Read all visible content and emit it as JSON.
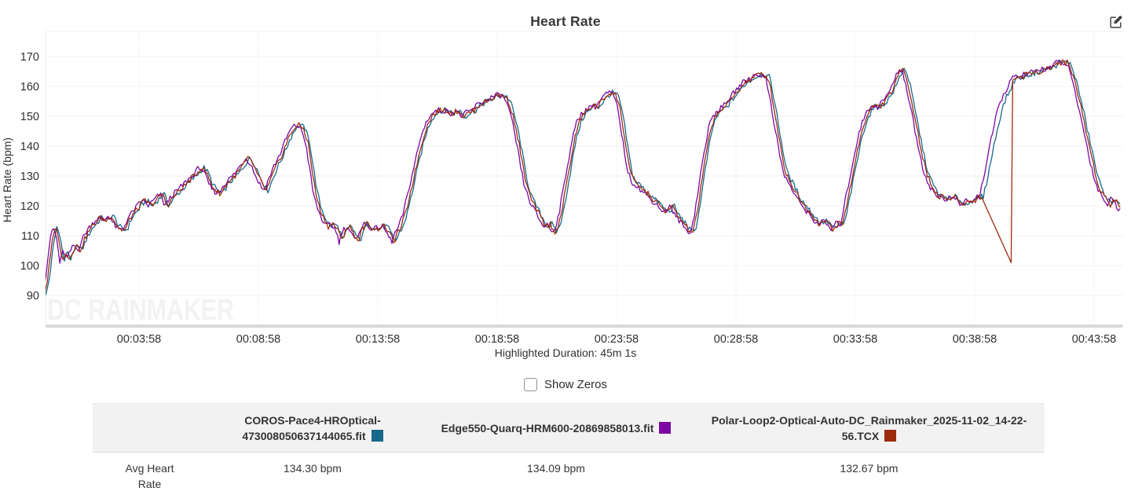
{
  "page": {
    "title": "Heart Rate"
  },
  "icons": {
    "edit": "pencil-square"
  },
  "controls": {
    "show_zeros_label": "Show Zeros",
    "show_zeros_checked": false
  },
  "x_axis": {
    "highlighted_duration": "Highlighted Duration: 45m 1s"
  },
  "watermark": "DC RAINMAKER",
  "table": {
    "row_label": "Avg Heart Rate"
  },
  "chart_data": {
    "type": "line",
    "title": "Heart Rate",
    "ylabel": "Heart Rate (bpm)",
    "y_ticks": [
      90,
      100,
      110,
      120,
      130,
      140,
      150,
      160,
      170
    ],
    "ylim": [
      79,
      178
    ],
    "x_ticks": [
      {
        "label": "00:03:58",
        "min": 3.9667
      },
      {
        "label": "00:08:58",
        "min": 8.9667
      },
      {
        "label": "00:13:58",
        "min": 13.9667
      },
      {
        "label": "00:18:58",
        "min": 18.9667
      },
      {
        "label": "00:23:58",
        "min": 23.9667
      },
      {
        "label": "00:28:58",
        "min": 28.9667
      },
      {
        "label": "00:33:58",
        "min": 33.9667
      },
      {
        "label": "00:38:58",
        "min": 38.9667
      },
      {
        "label": "00:43:58",
        "min": 43.9667
      }
    ],
    "x_range_minutes": [
      0,
      45.1
    ],
    "grid": true,
    "legend_position": "bottom-table",
    "base_curve_t_bpm": [
      [
        0,
        90
      ],
      [
        0.15,
        96
      ],
      [
        0.3,
        106
      ],
      [
        0.45,
        113
      ],
      [
        0.6,
        110
      ],
      [
        0.75,
        101
      ],
      [
        0.9,
        105
      ],
      [
        1.05,
        102
      ],
      [
        1.2,
        105
      ],
      [
        1.35,
        107
      ],
      [
        1.5,
        105
      ],
      [
        1.7,
        109
      ],
      [
        1.9,
        112
      ],
      [
        2.1,
        114
      ],
      [
        2.35,
        116
      ],
      [
        2.6,
        115
      ],
      [
        2.8,
        117
      ],
      [
        3.0,
        114
      ],
      [
        3.2,
        112
      ],
      [
        3.4,
        112
      ],
      [
        3.6,
        116
      ],
      [
        3.8,
        118
      ],
      [
        4.0,
        120
      ],
      [
        4.2,
        122
      ],
      [
        4.45,
        120
      ],
      [
        4.7,
        122
      ],
      [
        4.95,
        124
      ],
      [
        5.15,
        120
      ],
      [
        5.4,
        123
      ],
      [
        5.65,
        125
      ],
      [
        5.9,
        127
      ],
      [
        6.15,
        129
      ],
      [
        6.4,
        131
      ],
      [
        6.6,
        133
      ],
      [
        6.8,
        131
      ],
      [
        7.0,
        127
      ],
      [
        7.2,
        125
      ],
      [
        7.4,
        124
      ],
      [
        7.6,
        127
      ],
      [
        7.85,
        129
      ],
      [
        8.1,
        131
      ],
      [
        8.35,
        134
      ],
      [
        8.55,
        136
      ],
      [
        8.75,
        134
      ],
      [
        8.95,
        130
      ],
      [
        9.15,
        127
      ],
      [
        9.3,
        125
      ],
      [
        9.5,
        129
      ],
      [
        9.7,
        133
      ],
      [
        9.95,
        137
      ],
      [
        10.2,
        142
      ],
      [
        10.45,
        146
      ],
      [
        10.65,
        147
      ],
      [
        10.85,
        146
      ],
      [
        11.05,
        141
      ],
      [
        11.2,
        133
      ],
      [
        11.35,
        125
      ],
      [
        11.5,
        120
      ],
      [
        11.7,
        116
      ],
      [
        11.9,
        113
      ],
      [
        12.1,
        114
      ],
      [
        12.3,
        112
      ],
      [
        12.45,
        108
      ],
      [
        12.6,
        112
      ],
      [
        12.8,
        113
      ],
      [
        13.0,
        110
      ],
      [
        13.15,
        108
      ],
      [
        13.3,
        112
      ],
      [
        13.5,
        114
      ],
      [
        13.7,
        113
      ],
      [
        13.9,
        112
      ],
      [
        14.1,
        113
      ],
      [
        14.3,
        113
      ],
      [
        14.5,
        110
      ],
      [
        14.65,
        108
      ],
      [
        14.8,
        111
      ],
      [
        14.95,
        113
      ],
      [
        15.15,
        118
      ],
      [
        15.35,
        125
      ],
      [
        15.55,
        132
      ],
      [
        15.75,
        139
      ],
      [
        15.95,
        145
      ],
      [
        16.15,
        149
      ],
      [
        16.35,
        151
      ],
      [
        16.6,
        152
      ],
      [
        16.85,
        152
      ],
      [
        17.1,
        151
      ],
      [
        17.35,
        152
      ],
      [
        17.55,
        150
      ],
      [
        17.75,
        151
      ],
      [
        18.0,
        152
      ],
      [
        18.25,
        154
      ],
      [
        18.5,
        155
      ],
      [
        18.75,
        156
      ],
      [
        19.0,
        157
      ],
      [
        19.25,
        157
      ],
      [
        19.45,
        155
      ],
      [
        19.6,
        151
      ],
      [
        19.75,
        146
      ],
      [
        19.9,
        140
      ],
      [
        20.05,
        133
      ],
      [
        20.2,
        127
      ],
      [
        20.4,
        122
      ],
      [
        20.6,
        119
      ],
      [
        20.8,
        116
      ],
      [
        21.0,
        113
      ],
      [
        21.2,
        114
      ],
      [
        21.35,
        111
      ],
      [
        21.5,
        113
      ],
      [
        21.65,
        117
      ],
      [
        21.8,
        124
      ],
      [
        22.0,
        133
      ],
      [
        22.2,
        142
      ],
      [
        22.4,
        148
      ],
      [
        22.6,
        151
      ],
      [
        22.8,
        152
      ],
      [
        23.0,
        154
      ],
      [
        23.15,
        153
      ],
      [
        23.35,
        155
      ],
      [
        23.55,
        157
      ],
      [
        23.75,
        158
      ],
      [
        23.95,
        157
      ],
      [
        24.1,
        153
      ],
      [
        24.25,
        146
      ],
      [
        24.4,
        138
      ],
      [
        24.55,
        131
      ],
      [
        24.7,
        128
      ],
      [
        24.9,
        127
      ],
      [
        25.1,
        125
      ],
      [
        25.3,
        124
      ],
      [
        25.5,
        122
      ],
      [
        25.7,
        121
      ],
      [
        25.9,
        119
      ],
      [
        26.1,
        118
      ],
      [
        26.3,
        120
      ],
      [
        26.5,
        117
      ],
      [
        26.7,
        115
      ],
      [
        26.9,
        113
      ],
      [
        27.05,
        111
      ],
      [
        27.2,
        112
      ],
      [
        27.35,
        118
      ],
      [
        27.5,
        126
      ],
      [
        27.65,
        134
      ],
      [
        27.8,
        141
      ],
      [
        27.95,
        147
      ],
      [
        28.1,
        150
      ],
      [
        28.3,
        152
      ],
      [
        28.5,
        153
      ],
      [
        28.7,
        155
      ],
      [
        28.9,
        157
      ],
      [
        29.1,
        159
      ],
      [
        29.3,
        161
      ],
      [
        29.5,
        162
      ],
      [
        29.7,
        163
      ],
      [
        29.9,
        164
      ],
      [
        30.1,
        164
      ],
      [
        30.3,
        163
      ],
      [
        30.45,
        158
      ],
      [
        30.6,
        151
      ],
      [
        30.75,
        144
      ],
      [
        30.9,
        137
      ],
      [
        31.05,
        131
      ],
      [
        31.25,
        128
      ],
      [
        31.45,
        125
      ],
      [
        31.65,
        122
      ],
      [
        31.85,
        120
      ],
      [
        32.05,
        118
      ],
      [
        32.25,
        116
      ],
      [
        32.45,
        114
      ],
      [
        32.65,
        115
      ],
      [
        32.85,
        114
      ],
      [
        33.05,
        112
      ],
      [
        33.25,
        114
      ],
      [
        33.45,
        114
      ],
      [
        33.6,
        120
      ],
      [
        33.8,
        128
      ],
      [
        34.0,
        136
      ],
      [
        34.2,
        144
      ],
      [
        34.4,
        149
      ],
      [
        34.6,
        152
      ],
      [
        34.8,
        154
      ],
      [
        35.0,
        153
      ],
      [
        35.2,
        155
      ],
      [
        35.4,
        157
      ],
      [
        35.6,
        160
      ],
      [
        35.75,
        163
      ],
      [
        35.9,
        166
      ],
      [
        36.05,
        165
      ],
      [
        36.2,
        160
      ],
      [
        36.35,
        154
      ],
      [
        36.5,
        148
      ],
      [
        36.65,
        142
      ],
      [
        36.8,
        136
      ],
      [
        36.95,
        131
      ],
      [
        37.1,
        128
      ],
      [
        37.3,
        125
      ],
      [
        37.5,
        123
      ],
      [
        37.7,
        123
      ],
      [
        37.9,
        122
      ],
      [
        38.1,
        123
      ],
      [
        38.3,
        122
      ],
      [
        38.5,
        120
      ],
      [
        38.7,
        122
      ],
      [
        38.9,
        121
      ],
      [
        39.1,
        123
      ],
      [
        39.25,
        123
      ],
      [
        39.4,
        128
      ],
      [
        39.6,
        136
      ],
      [
        39.8,
        144
      ],
      [
        40.0,
        151
      ],
      [
        40.2,
        156
      ],
      [
        40.4,
        159
      ],
      [
        40.55,
        162
      ],
      [
        40.7,
        163
      ],
      [
        40.9,
        163
      ],
      [
        41.1,
        164
      ],
      [
        41.3,
        164
      ],
      [
        41.5,
        165
      ],
      [
        41.7,
        165
      ],
      [
        41.9,
        166
      ],
      [
        42.1,
        166
      ],
      [
        42.3,
        167
      ],
      [
        42.5,
        168
      ],
      [
        42.7,
        168
      ],
      [
        42.85,
        168
      ],
      [
        43.0,
        166
      ],
      [
        43.15,
        162
      ],
      [
        43.3,
        157
      ],
      [
        43.45,
        152
      ],
      [
        43.6,
        146
      ],
      [
        43.75,
        141
      ],
      [
        43.9,
        135
      ],
      [
        44.05,
        130
      ],
      [
        44.2,
        126
      ],
      [
        44.35,
        124
      ],
      [
        44.5,
        122
      ],
      [
        44.65,
        120
      ],
      [
        44.8,
        123
      ],
      [
        44.95,
        121
      ],
      [
        45.1,
        119
      ]
    ],
    "series": [
      {
        "name": "COROS-Pace4-HROptical-473008050637144065.fit",
        "color": "#17698C",
        "time_shift_min": 0.07,
        "seed": 1,
        "avg": "134.30 bpm"
      },
      {
        "name": "Edge550-Quarq-HRM600-20869858013.fit",
        "color": "#7D07A3",
        "time_shift_min": -0.1,
        "seed": 2,
        "avg": "134.09 bpm"
      },
      {
        "name": "Polar-Loop2-Optical-Auto-DC_Rainmaker_2025-11-02_14-22-56.TCX",
        "color": "#9D2B0E",
        "time_shift_min": 0.0,
        "seed": 3,
        "avg": "132.67 bpm",
        "dropout": {
          "start_min": 39.25,
          "end_min": 40.55,
          "end_bpm": 100
        }
      }
    ],
    "avg_row": {
      "label": "Avg Heart Rate",
      "values": [
        "134.30 bpm",
        "134.09 bpm",
        "132.67 bpm"
      ]
    }
  }
}
